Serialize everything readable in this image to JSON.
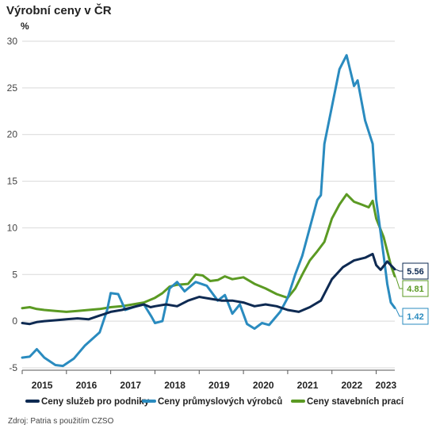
{
  "title": "Výrobní ceny v ČR",
  "source": "Zdroj: Patria s použitím CZSO",
  "colors": {
    "services": "#0e2a52",
    "industrial": "#2a8bbf",
    "construction": "#5b9a23",
    "grid": "#d9d9d9",
    "axis": "#555555"
  },
  "chart_data": {
    "type": "line",
    "ylabel": "%",
    "ylim": [
      -5,
      30
    ],
    "yticks": [
      -5,
      0,
      5,
      10,
      15,
      20,
      25,
      30
    ],
    "xlim": [
      2015.0,
      2023.42
    ],
    "xtick_labels": [
      "2015",
      "2016",
      "2017",
      "2018",
      "2019",
      "2020",
      "2021",
      "2022",
      "2023"
    ],
    "legend_position": "bottom",
    "end_labels": [
      {
        "series": "Ceny služeb pro podniky",
        "text": "5.56"
      },
      {
        "series": "Ceny stavebních prací",
        "text": "4.81"
      },
      {
        "series": "Ceny průmyslových výrobců",
        "text": "1.42"
      }
    ],
    "series": [
      {
        "name": "Ceny služeb pro podniky",
        "color_key": "services",
        "points": [
          [
            2015.0,
            -0.2
          ],
          [
            2015.17,
            -0.3
          ],
          [
            2015.33,
            -0.1
          ],
          [
            2015.5,
            0.0
          ],
          [
            2015.75,
            0.1
          ],
          [
            2016.0,
            0.2
          ],
          [
            2016.25,
            0.3
          ],
          [
            2016.5,
            0.2
          ],
          [
            2016.75,
            0.6
          ],
          [
            2017.0,
            1.0
          ],
          [
            2017.25,
            1.2
          ],
          [
            2017.5,
            1.5
          ],
          [
            2017.75,
            1.8
          ],
          [
            2017.9,
            1.5
          ],
          [
            2018.0,
            1.6
          ],
          [
            2018.25,
            1.8
          ],
          [
            2018.5,
            1.6
          ],
          [
            2018.75,
            2.2
          ],
          [
            2019.0,
            2.6
          ],
          [
            2019.25,
            2.4
          ],
          [
            2019.5,
            2.2
          ],
          [
            2019.75,
            2.2
          ],
          [
            2020.0,
            2.0
          ],
          [
            2020.25,
            1.6
          ],
          [
            2020.5,
            1.8
          ],
          [
            2020.75,
            1.6
          ],
          [
            2021.0,
            1.2
          ],
          [
            2021.25,
            1.0
          ],
          [
            2021.5,
            1.5
          ],
          [
            2021.75,
            2.2
          ],
          [
            2022.0,
            4.5
          ],
          [
            2022.25,
            5.8
          ],
          [
            2022.5,
            6.5
          ],
          [
            2022.75,
            6.8
          ],
          [
            2022.92,
            7.2
          ],
          [
            2023.0,
            6.0
          ],
          [
            2023.1,
            5.5
          ],
          [
            2023.25,
            6.4
          ],
          [
            2023.42,
            5.56
          ]
        ]
      },
      {
        "name": "Ceny průmyslových výrobců",
        "color_key": "industrial",
        "points": [
          [
            2015.0,
            -3.9
          ],
          [
            2015.17,
            -3.8
          ],
          [
            2015.33,
            -3.0
          ],
          [
            2015.5,
            -3.9
          ],
          [
            2015.75,
            -4.7
          ],
          [
            2015.92,
            -4.8
          ],
          [
            2016.17,
            -4.0
          ],
          [
            2016.42,
            -2.6
          ],
          [
            2016.75,
            -1.2
          ],
          [
            2016.92,
            1.2
          ],
          [
            2017.0,
            3.0
          ],
          [
            2017.17,
            2.9
          ],
          [
            2017.33,
            1.2
          ],
          [
            2017.58,
            1.6
          ],
          [
            2017.75,
            1.8
          ],
          [
            2017.92,
            0.5
          ],
          [
            2018.0,
            -0.2
          ],
          [
            2018.17,
            0.0
          ],
          [
            2018.33,
            3.5
          ],
          [
            2018.5,
            4.2
          ],
          [
            2018.67,
            3.2
          ],
          [
            2018.92,
            4.2
          ],
          [
            2019.17,
            3.8
          ],
          [
            2019.42,
            2.2
          ],
          [
            2019.58,
            2.8
          ],
          [
            2019.75,
            0.8
          ],
          [
            2019.92,
            1.8
          ],
          [
            2020.08,
            -0.3
          ],
          [
            2020.25,
            -0.8
          ],
          [
            2020.42,
            -0.2
          ],
          [
            2020.58,
            -0.4
          ],
          [
            2020.83,
            1.0
          ],
          [
            2021.0,
            2.5
          ],
          [
            2021.17,
            5.0
          ],
          [
            2021.33,
            7.0
          ],
          [
            2021.5,
            10.0
          ],
          [
            2021.67,
            13.0
          ],
          [
            2021.75,
            13.5
          ],
          [
            2021.83,
            19.0
          ],
          [
            2022.0,
            23.0
          ],
          [
            2022.17,
            27.0
          ],
          [
            2022.33,
            28.5
          ],
          [
            2022.5,
            25.2
          ],
          [
            2022.58,
            25.8
          ],
          [
            2022.75,
            21.5
          ],
          [
            2022.92,
            19.0
          ],
          [
            2023.0,
            13.0
          ],
          [
            2023.17,
            7.0
          ],
          [
            2023.25,
            4.0
          ],
          [
            2023.33,
            2.0
          ],
          [
            2023.42,
            1.42
          ]
        ]
      },
      {
        "name": "Ceny stavebních prací",
        "color_key": "construction",
        "points": [
          [
            2015.0,
            1.4
          ],
          [
            2015.17,
            1.5
          ],
          [
            2015.33,
            1.3
          ],
          [
            2015.5,
            1.2
          ],
          [
            2015.75,
            1.1
          ],
          [
            2016.0,
            1.0
          ],
          [
            2016.25,
            1.1
          ],
          [
            2016.5,
            1.2
          ],
          [
            2016.75,
            1.3
          ],
          [
            2017.0,
            1.5
          ],
          [
            2017.25,
            1.6
          ],
          [
            2017.5,
            1.8
          ],
          [
            2017.75,
            2.0
          ],
          [
            2018.0,
            2.5
          ],
          [
            2018.17,
            3.0
          ],
          [
            2018.33,
            3.7
          ],
          [
            2018.5,
            3.9
          ],
          [
            2018.75,
            4.0
          ],
          [
            2018.92,
            5.0
          ],
          [
            2019.08,
            4.9
          ],
          [
            2019.25,
            4.3
          ],
          [
            2019.42,
            4.4
          ],
          [
            2019.58,
            4.8
          ],
          [
            2019.75,
            4.5
          ],
          [
            2020.0,
            4.7
          ],
          [
            2020.25,
            4.0
          ],
          [
            2020.5,
            3.5
          ],
          [
            2020.75,
            2.9
          ],
          [
            2021.0,
            2.5
          ],
          [
            2021.17,
            3.5
          ],
          [
            2021.33,
            5.0
          ],
          [
            2021.5,
            6.5
          ],
          [
            2021.67,
            7.5
          ],
          [
            2021.83,
            8.5
          ],
          [
            2022.0,
            11.0
          ],
          [
            2022.17,
            12.5
          ],
          [
            2022.33,
            13.6
          ],
          [
            2022.5,
            12.8
          ],
          [
            2022.67,
            12.5
          ],
          [
            2022.83,
            12.2
          ],
          [
            2022.92,
            12.9
          ],
          [
            2023.0,
            11.0
          ],
          [
            2023.17,
            9.0
          ],
          [
            2023.33,
            6.0
          ],
          [
            2023.42,
            4.81
          ]
        ]
      }
    ]
  }
}
